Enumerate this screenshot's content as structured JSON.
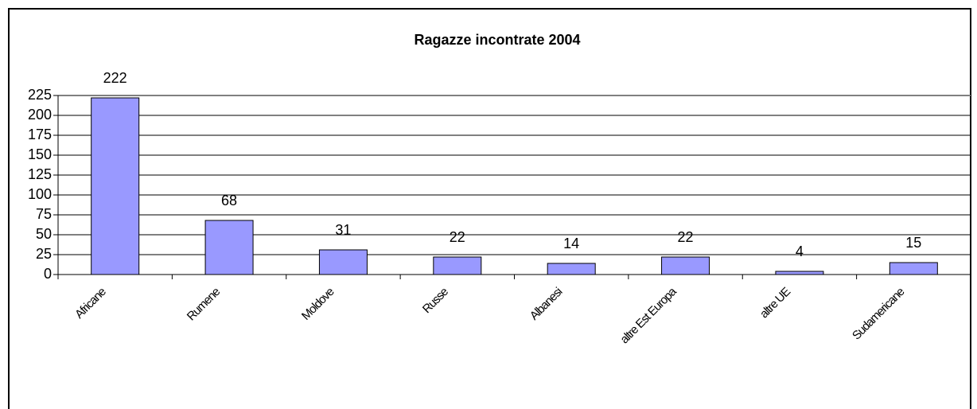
{
  "chart_data": {
    "type": "bar",
    "title": "Ragazze incontrate 2004",
    "categories": [
      "Africane",
      "Rumene",
      "Moldove",
      "Russe",
      "Albanesi",
      "altre Est Europa",
      "altre UE",
      "Sudamericane"
    ],
    "values": [
      222,
      68,
      31,
      22,
      14,
      22,
      4,
      15
    ],
    "color": "#9999ff",
    "ylim": [
      0,
      225
    ],
    "yticks": [
      0,
      25,
      50,
      75,
      100,
      125,
      150,
      175,
      200,
      225
    ],
    "grid": true
  }
}
